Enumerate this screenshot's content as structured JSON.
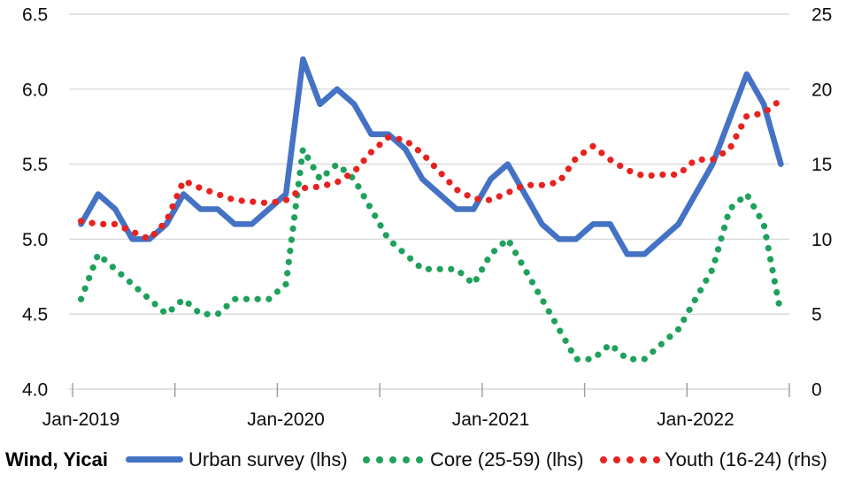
{
  "source_label": "Wind, Yicai",
  "colors": {
    "grid": "#d9d9d9",
    "tick": "#9c9c9c",
    "axis_text": "#0d0d0d"
  },
  "chart_data": {
    "type": "line",
    "title": "",
    "xlabel": "",
    "ylabel_left": "",
    "ylabel_right": "",
    "grid": true,
    "legend_position": "bottom",
    "x": [
      "Jan-2019",
      "Feb-2019",
      "Mar-2019",
      "Apr-2019",
      "May-2019",
      "Jun-2019",
      "Jul-2019",
      "Aug-2019",
      "Sep-2019",
      "Oct-2019",
      "Nov-2019",
      "Dec-2019",
      "Jan-2020",
      "Feb-2020",
      "Mar-2020",
      "Apr-2020",
      "May-2020",
      "Jun-2020",
      "Jul-2020",
      "Aug-2020",
      "Sep-2020",
      "Oct-2020",
      "Nov-2020",
      "Dec-2020",
      "Jan-2021",
      "Feb-2021",
      "Mar-2021",
      "Apr-2021",
      "May-2021",
      "Jun-2021",
      "Jul-2021",
      "Aug-2021",
      "Sep-2021",
      "Oct-2021",
      "Nov-2021",
      "Dec-2021",
      "Jan-2022",
      "Feb-2022",
      "Mar-2022",
      "Apr-2022",
      "May-2022",
      "Jun-2022"
    ],
    "x_tick_labels": [
      "Jan-2019",
      "Jan-2020",
      "Jan-2021",
      "Jan-2022"
    ],
    "y_left": {
      "min": 4.0,
      "max": 6.5,
      "ticks": [
        6.5,
        6.0,
        5.5,
        5.0,
        4.5,
        4.0
      ]
    },
    "y_right": {
      "min": 0,
      "max": 25,
      "ticks": [
        25,
        20,
        15,
        10,
        5,
        0
      ]
    },
    "series": [
      {
        "name": "Urban survey (lhs)",
        "axis": "left",
        "style": "solid",
        "color": "#4472c4",
        "values": [
          5.1,
          5.3,
          5.2,
          5.0,
          5.0,
          5.1,
          5.3,
          5.2,
          5.2,
          5.1,
          5.1,
          5.2,
          5.3,
          6.2,
          5.9,
          6.0,
          5.9,
          5.7,
          5.7,
          5.6,
          5.4,
          5.3,
          5.2,
          5.2,
          5.4,
          5.5,
          5.3,
          5.1,
          5.0,
          5.0,
          5.1,
          5.1,
          4.9,
          4.9,
          5.0,
          5.1,
          5.3,
          5.5,
          5.8,
          6.1,
          5.9,
          5.5
        ]
      },
      {
        "name": "Core (25-59) (lhs)",
        "axis": "left",
        "style": "dotted",
        "color": "#1fa15c",
        "values": [
          4.6,
          4.9,
          4.8,
          4.7,
          4.6,
          4.5,
          4.6,
          4.5,
          4.5,
          4.6,
          4.6,
          4.6,
          4.7,
          5.6,
          5.4,
          5.5,
          5.4,
          5.2,
          5.0,
          4.9,
          4.8,
          4.8,
          4.8,
          4.7,
          4.9,
          5.0,
          4.8,
          4.6,
          4.4,
          4.2,
          4.2,
          4.3,
          4.2,
          4.2,
          4.3,
          4.4,
          4.6,
          4.8,
          5.2,
          5.3,
          5.1,
          4.5
        ]
      },
      {
        "name": "Youth (16-24) (rhs)",
        "axis": "right",
        "style": "dotted",
        "color": "#e8231f",
        "values": [
          11.2,
          11.0,
          11.0,
          10.5,
          10.0,
          11.2,
          13.9,
          13.4,
          13.0,
          12.6,
          12.5,
          12.4,
          12.6,
          13.4,
          13.5,
          13.8,
          14.5,
          15.8,
          16.8,
          16.6,
          15.7,
          14.5,
          13.3,
          12.7,
          12.6,
          13.1,
          13.6,
          13.6,
          13.8,
          15.4,
          16.2,
          15.3,
          14.6,
          14.2,
          14.3,
          14.3,
          15.3,
          15.3,
          16.0,
          18.2,
          18.4,
          19.3
        ]
      }
    ]
  }
}
